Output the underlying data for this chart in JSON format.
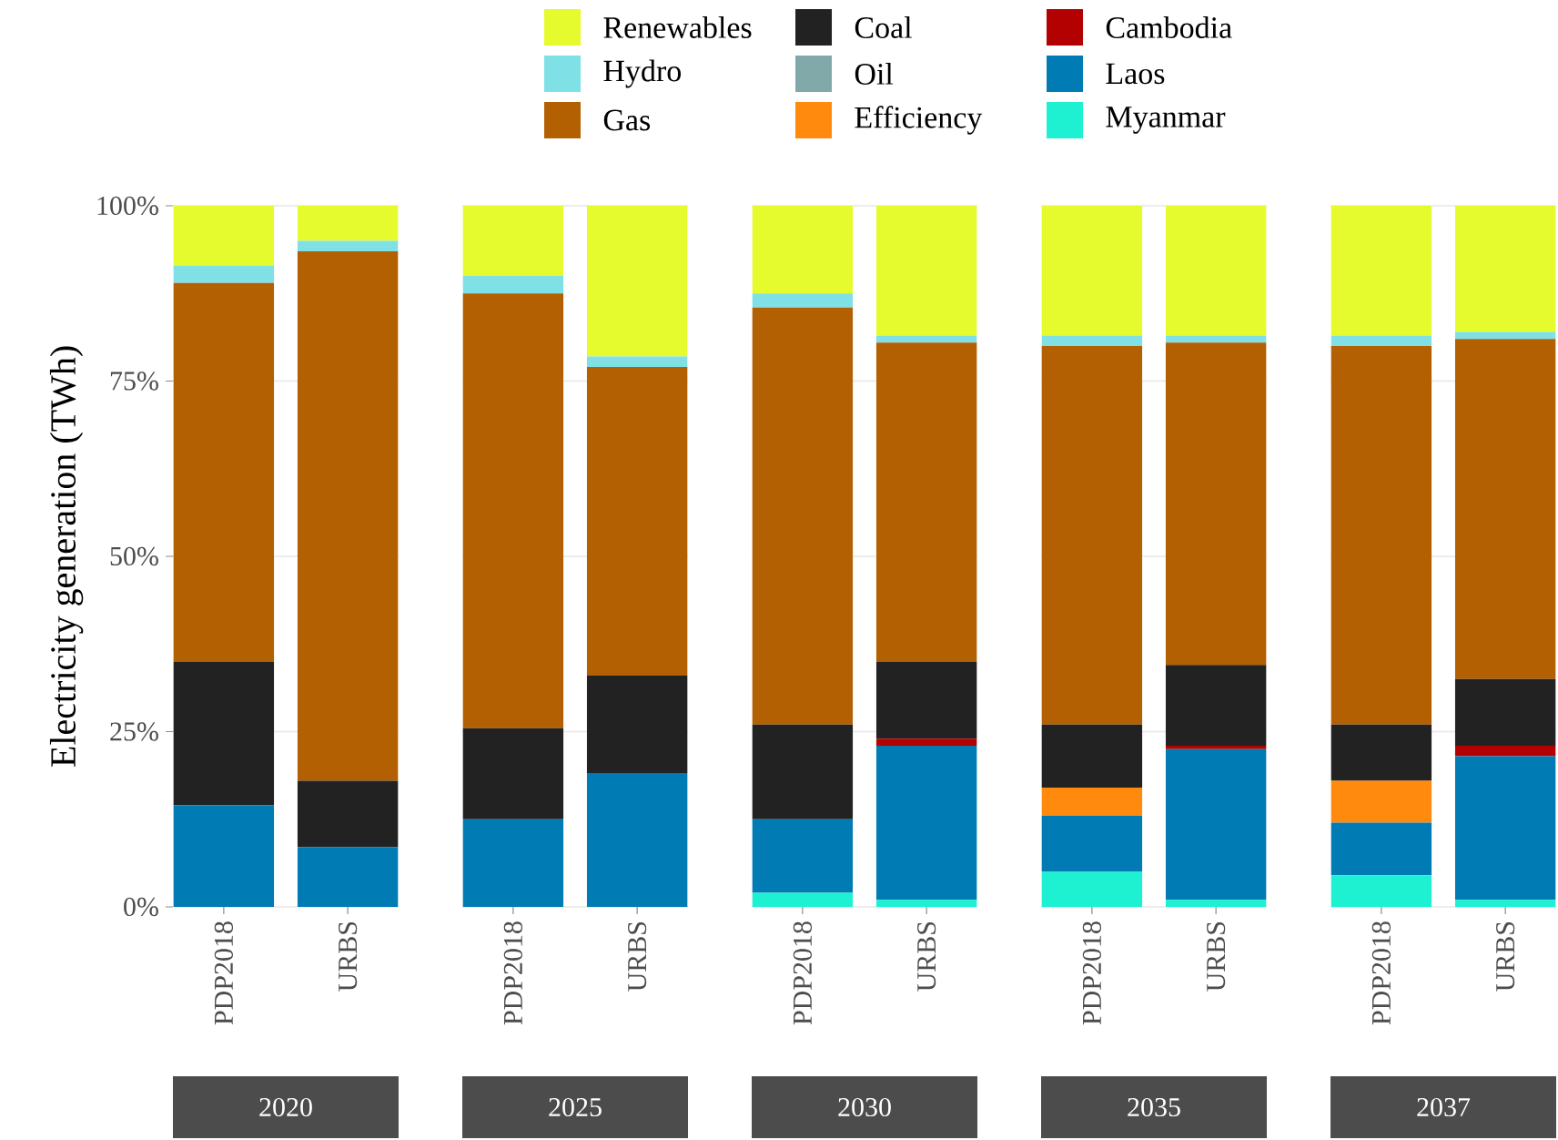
{
  "chart_data": [
    {
      "type": "bar",
      "stacked": true,
      "title": "2020",
      "ylabel": "Electricity generation (TWh)",
      "categories": [
        "PDP2018",
        "URBS"
      ],
      "ylim": [
        0,
        100
      ],
      "yticks": [
        {
          "value": 0,
          "label": "0%"
        },
        {
          "value": 25,
          "label": "25%"
        },
        {
          "value": 50,
          "label": "50%"
        },
        {
          "value": 75,
          "label": "75%"
        },
        {
          "value": 100,
          "label": "100%"
        }
      ],
      "grid": "y",
      "legend": "top",
      "series": [
        {
          "name": "Myanmar",
          "color": "#1ef1d2",
          "values": [
            0,
            0
          ]
        },
        {
          "name": "Laos",
          "color": "#007bb4",
          "values": [
            14.5,
            8.5
          ]
        },
        {
          "name": "Cambodia",
          "color": "#b30000",
          "values": [
            0,
            0
          ]
        },
        {
          "name": "Efficiency",
          "color": "#ff8a0d",
          "values": [
            0,
            0
          ]
        },
        {
          "name": "Oil",
          "color": "#81a9a9",
          "values": [
            0,
            0
          ]
        },
        {
          "name": "Coal",
          "color": "#222222",
          "values": [
            20.5,
            9.5
          ]
        },
        {
          "name": "Gas",
          "color": "#b36002",
          "values": [
            54,
            75.5
          ]
        },
        {
          "name": "Hydro",
          "color": "#7fe0e6",
          "values": [
            2.5,
            1.5
          ]
        },
        {
          "name": "Renewables",
          "color": "#e5fb2e",
          "values": [
            8.5,
            5
          ]
        }
      ]
    },
    {
      "type": "bar",
      "stacked": true,
      "title": "2025",
      "categories": [
        "PDP2018",
        "URBS"
      ],
      "ylim": [
        0,
        100
      ],
      "yticks": [
        {
          "value": 0,
          "label": null
        },
        {
          "value": 25,
          "label": null
        },
        {
          "value": 50,
          "label": null
        },
        {
          "value": 75,
          "label": null
        },
        {
          "value": 100,
          "label": null
        }
      ],
      "grid": "y",
      "tick_labels": "x",
      "series": [
        {
          "color": "#1ef1d2",
          "values": [
            0,
            0
          ]
        },
        {
          "color": "#007bb4",
          "values": [
            12.5,
            19
          ]
        },
        {
          "color": "#b30000",
          "values": [
            0,
            0
          ]
        },
        {
          "color": "#ff8a0d",
          "values": [
            0,
            0
          ]
        },
        {
          "color": "#81a9a9",
          "values": [
            0,
            0
          ]
        },
        {
          "color": "#222222",
          "values": [
            13,
            14
          ]
        },
        {
          "color": "#b36002",
          "values": [
            62,
            44
          ]
        },
        {
          "color": "#7fe0e6",
          "values": [
            2.5,
            1.5
          ]
        },
        {
          "color": "#e5fb2e",
          "values": [
            10,
            21.5
          ]
        }
      ]
    },
    {
      "type": "bar",
      "stacked": true,
      "title": "2030",
      "categories": [
        "PDP2018",
        "URBS"
      ],
      "ylim": [
        0,
        100
      ],
      "yticks": [
        {
          "value": 0,
          "label": null
        },
        {
          "value": 25,
          "label": null
        },
        {
          "value": 50,
          "label": null
        },
        {
          "value": 75,
          "label": null
        },
        {
          "value": 100,
          "label": null
        }
      ],
      "grid": "y",
      "tick_labels": "x",
      "series": [
        {
          "color": "#1ef1d2",
          "values": [
            2,
            1
          ]
        },
        {
          "color": "#007bb4",
          "values": [
            10.5,
            22
          ]
        },
        {
          "color": "#b30000",
          "values": [
            0,
            1
          ]
        },
        {
          "color": "#ff8a0d",
          "values": [
            0,
            0
          ]
        },
        {
          "color": "#81a9a9",
          "values": [
            0,
            0
          ]
        },
        {
          "color": "#222222",
          "values": [
            13.5,
            11
          ]
        },
        {
          "color": "#b36002",
          "values": [
            59.5,
            45.5
          ]
        },
        {
          "color": "#7fe0e6",
          "values": [
            2,
            1
          ]
        },
        {
          "color": "#e5fb2e",
          "values": [
            12.5,
            18.5
          ]
        }
      ]
    },
    {
      "type": "bar",
      "stacked": true,
      "title": "2035",
      "categories": [
        "PDP2018",
        "URBS"
      ],
      "ylim": [
        0,
        100
      ],
      "yticks": [
        {
          "value": 0,
          "label": null
        },
        {
          "value": 25,
          "label": null
        },
        {
          "value": 50,
          "label": null
        },
        {
          "value": 75,
          "label": null
        },
        {
          "value": 100,
          "label": null
        }
      ],
      "grid": "y",
      "tick_labels": "x",
      "series": [
        {
          "color": "#1ef1d2",
          "values": [
            5,
            1
          ]
        },
        {
          "color": "#007bb4",
          "values": [
            8,
            21.5
          ]
        },
        {
          "color": "#b30000",
          "values": [
            0,
            0.5
          ]
        },
        {
          "color": "#ff8a0d",
          "values": [
            4,
            0
          ]
        },
        {
          "color": "#81a9a9",
          "values": [
            0,
            0
          ]
        },
        {
          "color": "#222222",
          "values": [
            9,
            11.5
          ]
        },
        {
          "color": "#b36002",
          "values": [
            54,
            46
          ]
        },
        {
          "color": "#7fe0e6",
          "values": [
            1.5,
            1
          ]
        },
        {
          "color": "#e5fb2e",
          "values": [
            18.5,
            18.5
          ]
        }
      ]
    },
    {
      "type": "bar",
      "stacked": true,
      "title": "2037",
      "categories": [
        "PDP2018",
        "URBS"
      ],
      "ylim": [
        0,
        100
      ],
      "yticks": [
        {
          "value": 0,
          "label": null
        },
        {
          "value": 25,
          "label": null
        },
        {
          "value": 50,
          "label": null
        },
        {
          "value": 75,
          "label": null
        },
        {
          "value": 100,
          "label": null
        }
      ],
      "grid": "y",
      "tick_labels": "x",
      "series": [
        {
          "color": "#1ef1d2",
          "values": [
            4.5,
            1
          ]
        },
        {
          "color": "#007bb4",
          "values": [
            7.5,
            20.5
          ]
        },
        {
          "color": "#b30000",
          "values": [
            0,
            1.5
          ]
        },
        {
          "color": "#ff8a0d",
          "values": [
            6,
            0
          ]
        },
        {
          "color": "#81a9a9",
          "values": [
            0,
            0
          ]
        },
        {
          "color": "#222222",
          "values": [
            8,
            9.5
          ]
        },
        {
          "color": "#b36002",
          "values": [
            54,
            48.5
          ]
        },
        {
          "color": "#7fe0e6",
          "values": [
            1.5,
            1
          ]
        },
        {
          "color": "#e5fb2e",
          "values": [
            18.5,
            18
          ]
        }
      ]
    }
  ]
}
